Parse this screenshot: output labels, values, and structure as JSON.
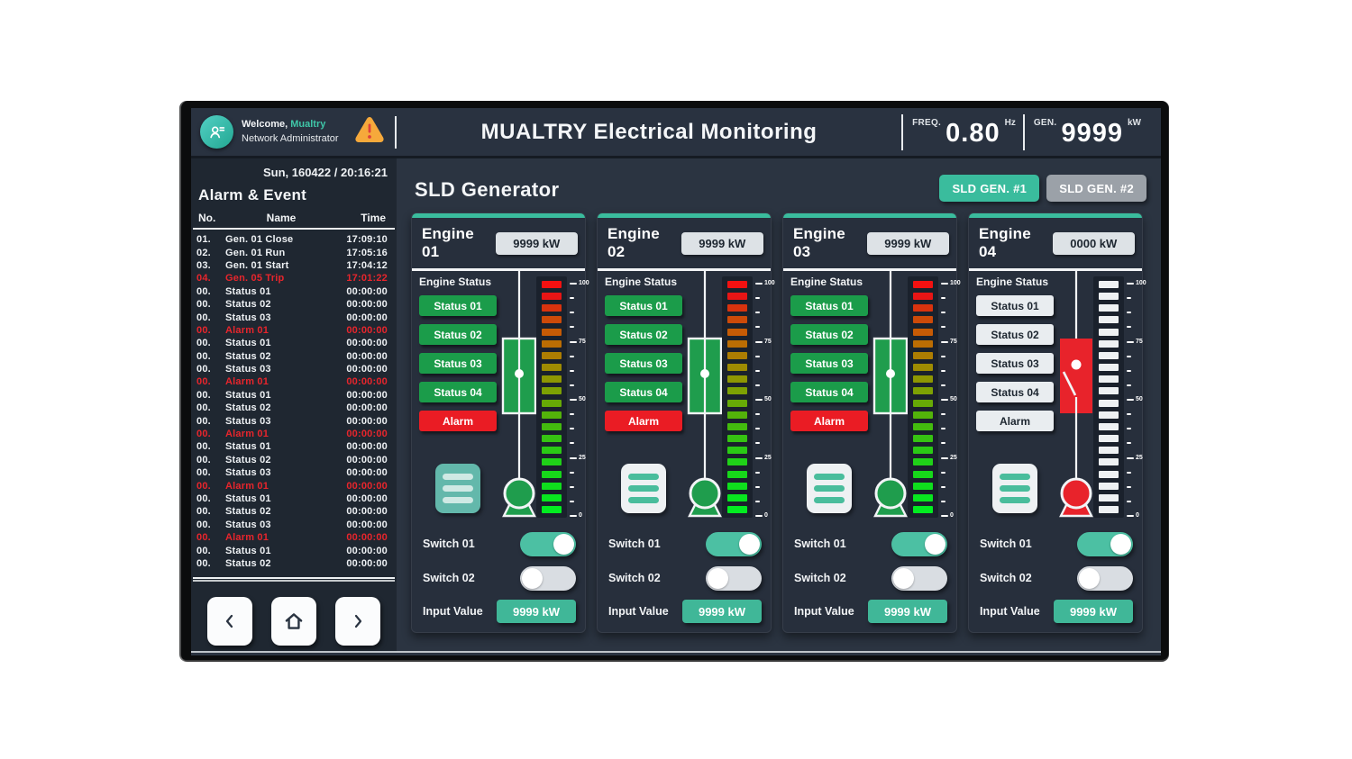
{
  "header": {
    "welcome_prefix": "Welcome,",
    "username": "Mualtry",
    "role": "Network Administrator",
    "user_icon": "user-badge-icon",
    "warning_icon": "warning-triangle-icon",
    "title": "MUALTRY Electrical Monitoring",
    "freq": {
      "label": "FREQ.",
      "value": "0.80",
      "unit": "Hz"
    },
    "gen": {
      "label": "GEN.",
      "value": "9999",
      "unit": "kW"
    }
  },
  "sidebar": {
    "datetime": "Sun, 160422 / 20:16:21",
    "section_title": "Alarm & Event",
    "columns": {
      "no": "No.",
      "name": "Name",
      "time": "Time"
    },
    "events": [
      {
        "no": "01.",
        "name": "Gen. 01 Close",
        "time": "17:09:10",
        "alarm": false
      },
      {
        "no": "02.",
        "name": "Gen. 01 Run",
        "time": "17:05:16",
        "alarm": false
      },
      {
        "no": "03.",
        "name": "Gen. 01 Start",
        "time": "17:04:12",
        "alarm": false
      },
      {
        "no": "04.",
        "name": "Gen. 05 Trip",
        "time": "17:01:22",
        "alarm": true
      },
      {
        "no": "00.",
        "name": "Status 01",
        "time": "00:00:00",
        "alarm": false
      },
      {
        "no": "00.",
        "name": "Status 02",
        "time": "00:00:00",
        "alarm": false
      },
      {
        "no": "00.",
        "name": "Status 03",
        "time": "00:00:00",
        "alarm": false
      },
      {
        "no": "00.",
        "name": "Alarm 01",
        "time": "00:00:00",
        "alarm": true
      },
      {
        "no": "00.",
        "name": "Status 01",
        "time": "00:00:00",
        "alarm": false
      },
      {
        "no": "00.",
        "name": "Status 02",
        "time": "00:00:00",
        "alarm": false
      },
      {
        "no": "00.",
        "name": "Status 03",
        "time": "00:00:00",
        "alarm": false
      },
      {
        "no": "00.",
        "name": "Alarm 01",
        "time": "00:00:00",
        "alarm": true
      },
      {
        "no": "00.",
        "name": "Status 01",
        "time": "00:00:00",
        "alarm": false
      },
      {
        "no": "00.",
        "name": "Status 02",
        "time": "00:00:00",
        "alarm": false
      },
      {
        "no": "00.",
        "name": "Status 03",
        "time": "00:00:00",
        "alarm": false
      },
      {
        "no": "00.",
        "name": "Alarm 01",
        "time": "00:00:00",
        "alarm": true
      },
      {
        "no": "00.",
        "name": "Status 01",
        "time": "00:00:00",
        "alarm": false
      },
      {
        "no": "00.",
        "name": "Status 02",
        "time": "00:00:00",
        "alarm": false
      },
      {
        "no": "00.",
        "name": "Status 03",
        "time": "00:00:00",
        "alarm": false
      },
      {
        "no": "00.",
        "name": "Alarm 01",
        "time": "00:00:00",
        "alarm": true
      },
      {
        "no": "00.",
        "name": "Status 01",
        "time": "00:00:00",
        "alarm": false
      },
      {
        "no": "00.",
        "name": "Status 02",
        "time": "00:00:00",
        "alarm": false
      },
      {
        "no": "00.",
        "name": "Status 03",
        "time": "00:00:00",
        "alarm": false
      },
      {
        "no": "00.",
        "name": "Alarm 01",
        "time": "00:00:00",
        "alarm": true
      },
      {
        "no": "00.",
        "name": "Status 01",
        "time": "00:00:00",
        "alarm": false
      },
      {
        "no": "00.",
        "name": "Status 02",
        "time": "00:00:00",
        "alarm": false
      }
    ],
    "nav_buttons": [
      {
        "icon": "chevron-left-icon"
      },
      {
        "icon": "home-icon"
      },
      {
        "icon": "chevron-right-icon"
      }
    ]
  },
  "main": {
    "title": "SLD Generator",
    "tabs": [
      {
        "label": "SLD GEN. #1",
        "active": true
      },
      {
        "label": "SLD GEN. #2",
        "active": false
      }
    ],
    "engine_status_label": "Engine Status",
    "gauge": {
      "tick_labels": [
        "100",
        "75",
        "50",
        "25",
        "0"
      ],
      "tick_count": 17,
      "segment_colors": [
        "#f31111",
        "#e81515",
        "#d9330e",
        "#cd4a09",
        "#c65b05",
        "#bb6d03",
        "#ad7d02",
        "#9e8b02",
        "#8e9702",
        "#7da103",
        "#67aa06",
        "#53b30a",
        "#43bb0e",
        "#36c312",
        "#2aca15",
        "#20d118",
        "#17d81a",
        "#0fdf1d",
        "#08e61f",
        "#03ec21"
      ],
      "off_color": "#eef1f3"
    },
    "panels": [
      {
        "name": "Engine 01",
        "output": "9999 kW",
        "running": true,
        "breaker": "closed",
        "load_active": true,
        "statuses": [
          "Status 01",
          "Status 02",
          "Status 03",
          "Status 04"
        ],
        "alarm": "Alarm",
        "switches": [
          {
            "label": "Switch 01",
            "on": true
          },
          {
            "label": "Switch 02",
            "on": false
          }
        ],
        "input_label": "Input Value",
        "input_value": "9999 kW"
      },
      {
        "name": "Engine 02",
        "output": "9999 kW",
        "running": true,
        "breaker": "closed",
        "load_active": false,
        "statuses": [
          "Status 01",
          "Status 02",
          "Status 03",
          "Status 04"
        ],
        "alarm": "Alarm",
        "switches": [
          {
            "label": "Switch 01",
            "on": true
          },
          {
            "label": "Switch 02",
            "on": false
          }
        ],
        "input_label": "Input Value",
        "input_value": "9999 kW"
      },
      {
        "name": "Engine 03",
        "output": "9999 kW",
        "running": true,
        "breaker": "closed",
        "load_active": false,
        "statuses": [
          "Status 01",
          "Status 02",
          "Status 03",
          "Status 04"
        ],
        "alarm": "Alarm",
        "switches": [
          {
            "label": "Switch 01",
            "on": true
          },
          {
            "label": "Switch 02",
            "on": false
          }
        ],
        "input_label": "Input Value",
        "input_value": "9999 kW"
      },
      {
        "name": "Engine 04",
        "output": "0000 kW",
        "running": false,
        "breaker": "open",
        "load_active": false,
        "statuses": [
          "Status 01",
          "Status 02",
          "Status 03",
          "Status 04"
        ],
        "alarm": "Alarm",
        "switches": [
          {
            "label": "Switch 01",
            "on": true
          },
          {
            "label": "Switch 02",
            "on": false
          }
        ],
        "input_label": "Input Value",
        "input_value": "9999 kW"
      }
    ]
  },
  "colors": {
    "accent_teal": "#3abc9d",
    "run_green": "#1f9d4d",
    "alarm_red": "#e8232b",
    "panel_bg": "#272f3c",
    "sidebar_bg": "#1f2731",
    "main_bg": "#2b3441"
  }
}
